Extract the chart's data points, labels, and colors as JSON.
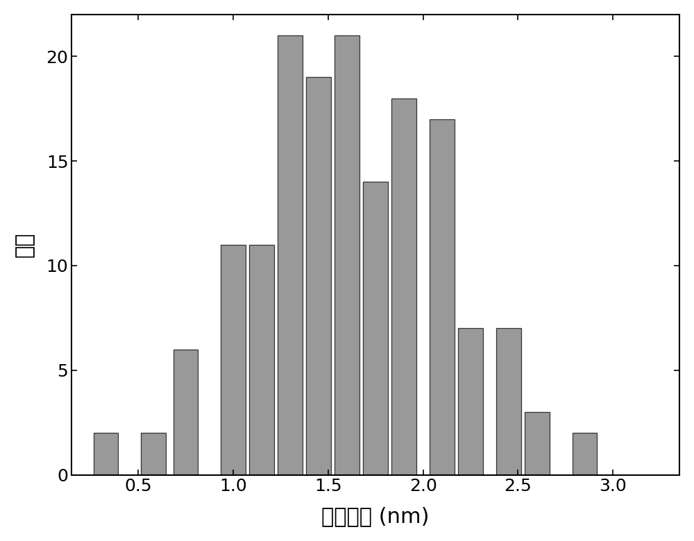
{
  "bar_positions": [
    0.33,
    0.58,
    0.75,
    1.0,
    1.15,
    1.3,
    1.45,
    1.6,
    1.75,
    1.9,
    2.1,
    2.25,
    2.45,
    2.6,
    2.85,
    3.1
  ],
  "bar_heights": [
    2,
    2,
    6,
    11,
    11,
    21,
    19,
    21,
    14,
    18,
    17,
    7,
    7,
    3,
    2,
    0
  ],
  "bar_width": 0.13,
  "bar_color": "#999999",
  "bar_edgecolor": "#333333",
  "xlabel": "粒径尺寸 (nm)",
  "ylabel": "频数",
  "xlim": [
    0.15,
    3.35
  ],
  "ylim": [
    0,
    22
  ],
  "xticks": [
    0.5,
    1.0,
    1.5,
    2.0,
    2.5,
    3.0
  ],
  "xtick_labels": [
    "0.5",
    "1.0",
    "1.5",
    "2.0",
    "2.5",
    "3.0"
  ],
  "yticks": [
    0,
    5,
    10,
    15,
    20
  ],
  "ytick_labels": [
    "0",
    "5",
    "10",
    "15",
    "20"
  ],
  "xlabel_fontsize": 22,
  "ylabel_fontsize": 22,
  "tick_fontsize": 18,
  "spine_linewidth": 1.5,
  "figure_facecolor": "#ffffff"
}
